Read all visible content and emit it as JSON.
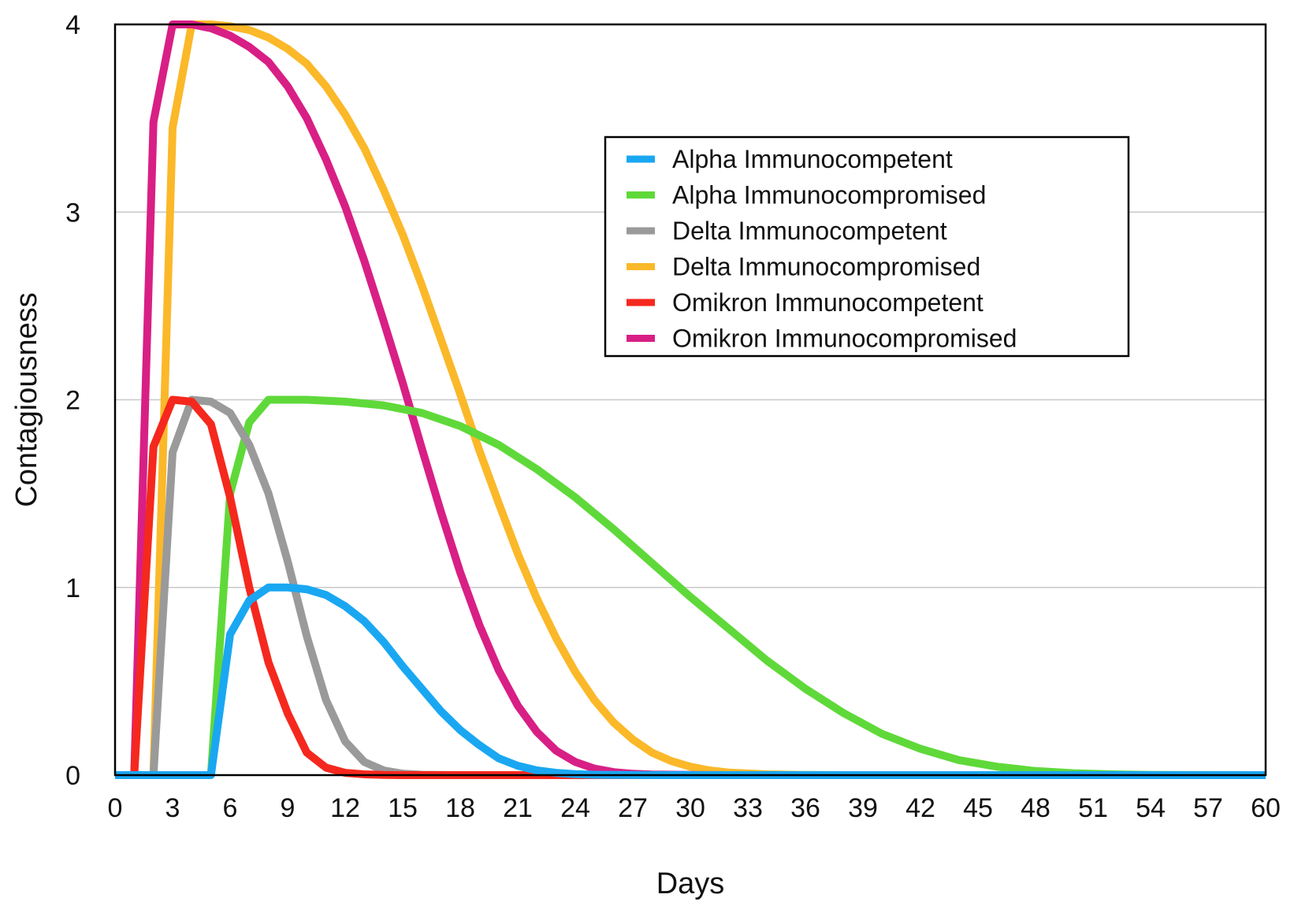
{
  "chart_data": {
    "type": "line",
    "title": "",
    "xlabel": "Days",
    "ylabel": "Contagiousness",
    "xlim": [
      0,
      60
    ],
    "ylim": [
      0,
      4
    ],
    "xticks": [
      "0",
      "3",
      "6",
      "9",
      "12",
      "15",
      "18",
      "21",
      "24",
      "27",
      "30",
      "33",
      "36",
      "39",
      "42",
      "45",
      "48",
      "51",
      "54",
      "57",
      "60"
    ],
    "yticks": [
      "0",
      "1",
      "2",
      "3",
      "4"
    ],
    "grid": "horizontal",
    "legend_position": "top-right",
    "series": [
      {
        "name": "Alpha Immunocompetent",
        "color": "#1aa7f2",
        "x": [
          0,
          5,
          6,
          7,
          8,
          9,
          10,
          11,
          12,
          13,
          14,
          15,
          16,
          17,
          18,
          19,
          20,
          21,
          22,
          23,
          24,
          25,
          26,
          28,
          30,
          60
        ],
        "y": [
          0,
          0,
          0.75,
          0.93,
          1.0,
          1.0,
          0.99,
          0.96,
          0.9,
          0.82,
          0.71,
          0.58,
          0.46,
          0.34,
          0.24,
          0.16,
          0.09,
          0.05,
          0.025,
          0.012,
          0.005,
          0.002,
          0.001,
          0,
          0,
          0
        ]
      },
      {
        "name": "Alpha Immunocompromised",
        "color": "#5fd93a",
        "x": [
          0,
          5,
          6,
          7,
          8,
          10,
          12,
          14,
          16,
          18,
          20,
          22,
          24,
          26,
          28,
          30,
          32,
          34,
          36,
          38,
          40,
          42,
          44,
          46,
          48,
          50,
          52,
          54,
          60
        ],
        "y": [
          0,
          0,
          1.5,
          1.88,
          2.0,
          2.0,
          1.99,
          1.97,
          1.93,
          1.86,
          1.76,
          1.63,
          1.48,
          1.31,
          1.13,
          0.95,
          0.78,
          0.61,
          0.46,
          0.33,
          0.22,
          0.14,
          0.08,
          0.045,
          0.022,
          0.01,
          0.004,
          0.001,
          0
        ]
      },
      {
        "name": "Delta Immunocompetent",
        "color": "#9a9a9a",
        "x": [
          0,
          2,
          3,
          4,
          5,
          6,
          7,
          8,
          9,
          10,
          11,
          12,
          13,
          14,
          15,
          16,
          17,
          18,
          60
        ],
        "y": [
          0,
          0,
          1.72,
          2.0,
          1.99,
          1.93,
          1.76,
          1.5,
          1.14,
          0.74,
          0.4,
          0.18,
          0.07,
          0.025,
          0.008,
          0.002,
          0.001,
          0,
          0
        ]
      },
      {
        "name": "Delta Immunocompromised",
        "color": "#fbb829",
        "x": [
          0,
          2,
          3,
          4,
          5,
          6,
          7,
          8,
          9,
          10,
          11,
          12,
          13,
          14,
          15,
          16,
          17,
          18,
          19,
          20,
          21,
          22,
          23,
          24,
          25,
          26,
          27,
          28,
          29,
          30,
          31,
          32,
          34,
          36,
          38,
          60
        ],
        "y": [
          0,
          0,
          3.45,
          4.0,
          4.0,
          3.99,
          3.97,
          3.93,
          3.87,
          3.79,
          3.67,
          3.52,
          3.34,
          3.12,
          2.88,
          2.61,
          2.32,
          2.03,
          1.73,
          1.45,
          1.18,
          0.94,
          0.73,
          0.55,
          0.4,
          0.28,
          0.19,
          0.12,
          0.075,
          0.045,
          0.025,
          0.014,
          0.004,
          0.001,
          0,
          0
        ]
      },
      {
        "name": "Omikron Immunocompetent",
        "color": "#f5281e",
        "x": [
          0,
          1,
          2,
          3,
          4,
          5,
          6,
          7,
          8,
          9,
          10,
          11,
          12,
          13,
          14,
          15,
          60
        ],
        "y": [
          0,
          0,
          1.75,
          2.0,
          1.99,
          1.87,
          1.48,
          1.0,
          0.6,
          0.33,
          0.12,
          0.04,
          0.012,
          0.004,
          0.001,
          0,
          0
        ]
      },
      {
        "name": "Omikron Immunocompromised",
        "color": "#d81f85",
        "x": [
          0,
          1,
          2,
          3,
          4,
          5,
          6,
          7,
          8,
          9,
          10,
          11,
          12,
          13,
          14,
          15,
          16,
          17,
          18,
          19,
          20,
          21,
          22,
          23,
          24,
          25,
          26,
          27,
          28,
          30,
          32,
          60
        ],
        "y": [
          0,
          0,
          3.48,
          4.0,
          4.0,
          3.98,
          3.94,
          3.88,
          3.8,
          3.67,
          3.5,
          3.28,
          3.03,
          2.74,
          2.42,
          2.09,
          1.74,
          1.4,
          1.08,
          0.8,
          0.56,
          0.37,
          0.23,
          0.13,
          0.07,
          0.035,
          0.016,
          0.007,
          0.003,
          0.001,
          0,
          0
        ]
      }
    ]
  }
}
